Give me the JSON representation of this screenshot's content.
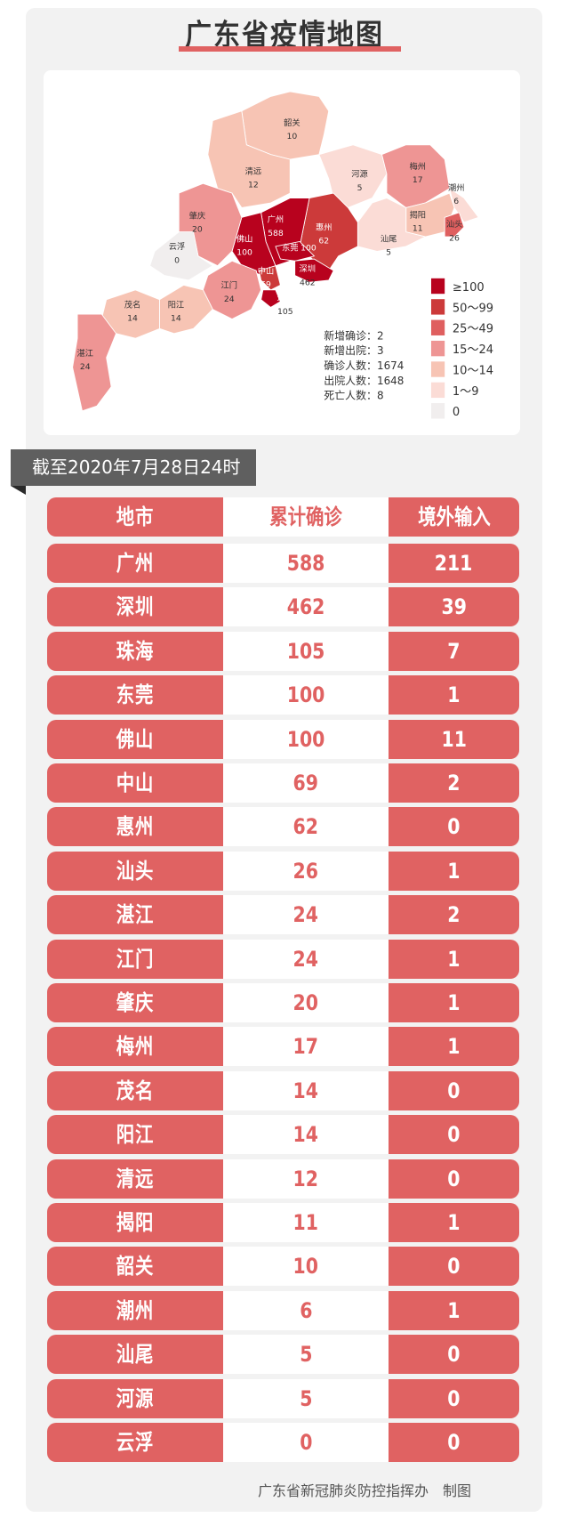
{
  "title": "广东省疫情地图",
  "date_banner": "截至2020年7月28日24时",
  "map": {
    "regions": [
      {
        "name": "韶关",
        "value": "10"
      },
      {
        "name": "清远",
        "value": "12"
      },
      {
        "name": "河源",
        "value": "5"
      },
      {
        "name": "梅州",
        "value": "17"
      },
      {
        "name": "潮州",
        "value": "6"
      },
      {
        "name": "揭阳",
        "value": "11"
      },
      {
        "name": "汕头",
        "value": "26"
      },
      {
        "name": "汕尾",
        "value": "5"
      },
      {
        "name": "惠州",
        "value": "62"
      },
      {
        "name": "广州",
        "value": "588"
      },
      {
        "name": "佛山",
        "value": "100"
      },
      {
        "name": "东莞",
        "value": "100"
      },
      {
        "name": "深圳",
        "value": "462"
      },
      {
        "name": "中山",
        "value": "69"
      },
      {
        "name": "珠海",
        "value": "105"
      },
      {
        "name": "肇庆",
        "value": "20"
      },
      {
        "name": "云浮",
        "value": "0"
      },
      {
        "name": "江门",
        "value": "24"
      },
      {
        "name": "阳江",
        "value": "14"
      },
      {
        "name": "茂名",
        "value": "14"
      },
      {
        "name": "湛江",
        "value": "24"
      }
    ],
    "stats": [
      "新增确诊：2",
      "新增出院：3",
      "确诊人数：1674",
      "出院人数：1648",
      "死亡人数：8"
    ],
    "legend": [
      {
        "label": "≥100",
        "color": "#b8021e"
      },
      {
        "label": "50～99",
        "color": "#cc3a3a"
      },
      {
        "label": "25～49",
        "color": "#df5f5f"
      },
      {
        "label": "15～24",
        "color": "#ee9594"
      },
      {
        "label": "10～14",
        "color": "#f7c4b4"
      },
      {
        "label": "1～9",
        "color": "#fbdcd6"
      },
      {
        "label": "0",
        "color": "#f1eeee"
      }
    ]
  },
  "table": {
    "headers": [
      "地市",
      "累计确诊",
      "境外输入"
    ],
    "rows": [
      [
        "广州",
        "588",
        "211"
      ],
      [
        "深圳",
        "462",
        "39"
      ],
      [
        "珠海",
        "105",
        "7"
      ],
      [
        "东莞",
        "100",
        "1"
      ],
      [
        "佛山",
        "100",
        "11"
      ],
      [
        "中山",
        "69",
        "2"
      ],
      [
        "惠州",
        "62",
        "0"
      ],
      [
        "汕头",
        "26",
        "1"
      ],
      [
        "湛江",
        "24",
        "2"
      ],
      [
        "江门",
        "24",
        "1"
      ],
      [
        "肇庆",
        "20",
        "1"
      ],
      [
        "梅州",
        "17",
        "1"
      ],
      [
        "茂名",
        "14",
        "0"
      ],
      [
        "阳江",
        "14",
        "0"
      ],
      [
        "清远",
        "12",
        "0"
      ],
      [
        "揭阳",
        "11",
        "1"
      ],
      [
        "韶关",
        "10",
        "0"
      ],
      [
        "潮州",
        "6",
        "1"
      ],
      [
        "汕尾",
        "5",
        "0"
      ],
      [
        "河源",
        "5",
        "0"
      ],
      [
        "云浮",
        "0",
        "0"
      ]
    ]
  },
  "footer": "广东省新冠肺炎防控指挥办　制图",
  "colors": {
    "accent": "#e06262",
    "panel": "#f2f2f2",
    "banner": "#5f5f5f"
  }
}
